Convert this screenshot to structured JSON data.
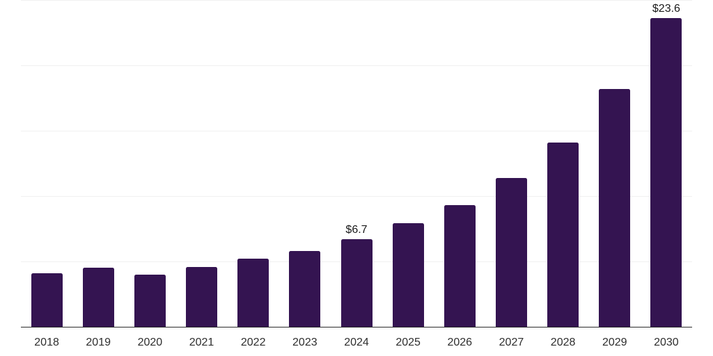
{
  "chart_data": {
    "type": "bar",
    "categories": [
      "2018",
      "2019",
      "2020",
      "2021",
      "2022",
      "2023",
      "2024",
      "2025",
      "2026",
      "2027",
      "2028",
      "2029",
      "2030"
    ],
    "values": [
      4.1,
      4.5,
      4.0,
      4.6,
      5.2,
      5.8,
      6.7,
      7.9,
      9.3,
      11.4,
      14.1,
      18.2,
      23.6
    ],
    "annotations": [
      {
        "category": "2024",
        "text": "$6.7"
      },
      {
        "category": "2030",
        "text": "$23.6"
      }
    ],
    "title": "",
    "xlabel": "",
    "ylabel": "",
    "ylim": [
      0,
      25
    ],
    "gridline_values": [
      5,
      10,
      15,
      20,
      25
    ],
    "grid": "horizontal-only",
    "legend": "none",
    "y_axis_tick_labels_visible": false,
    "colors": {
      "bar": "#341451",
      "gridline": "#f0f0f0",
      "axis": "#2b2b2b",
      "tick_label": "#2e2e2e",
      "annotation": "#1a1a1a",
      "background": "#ffffff"
    }
  }
}
